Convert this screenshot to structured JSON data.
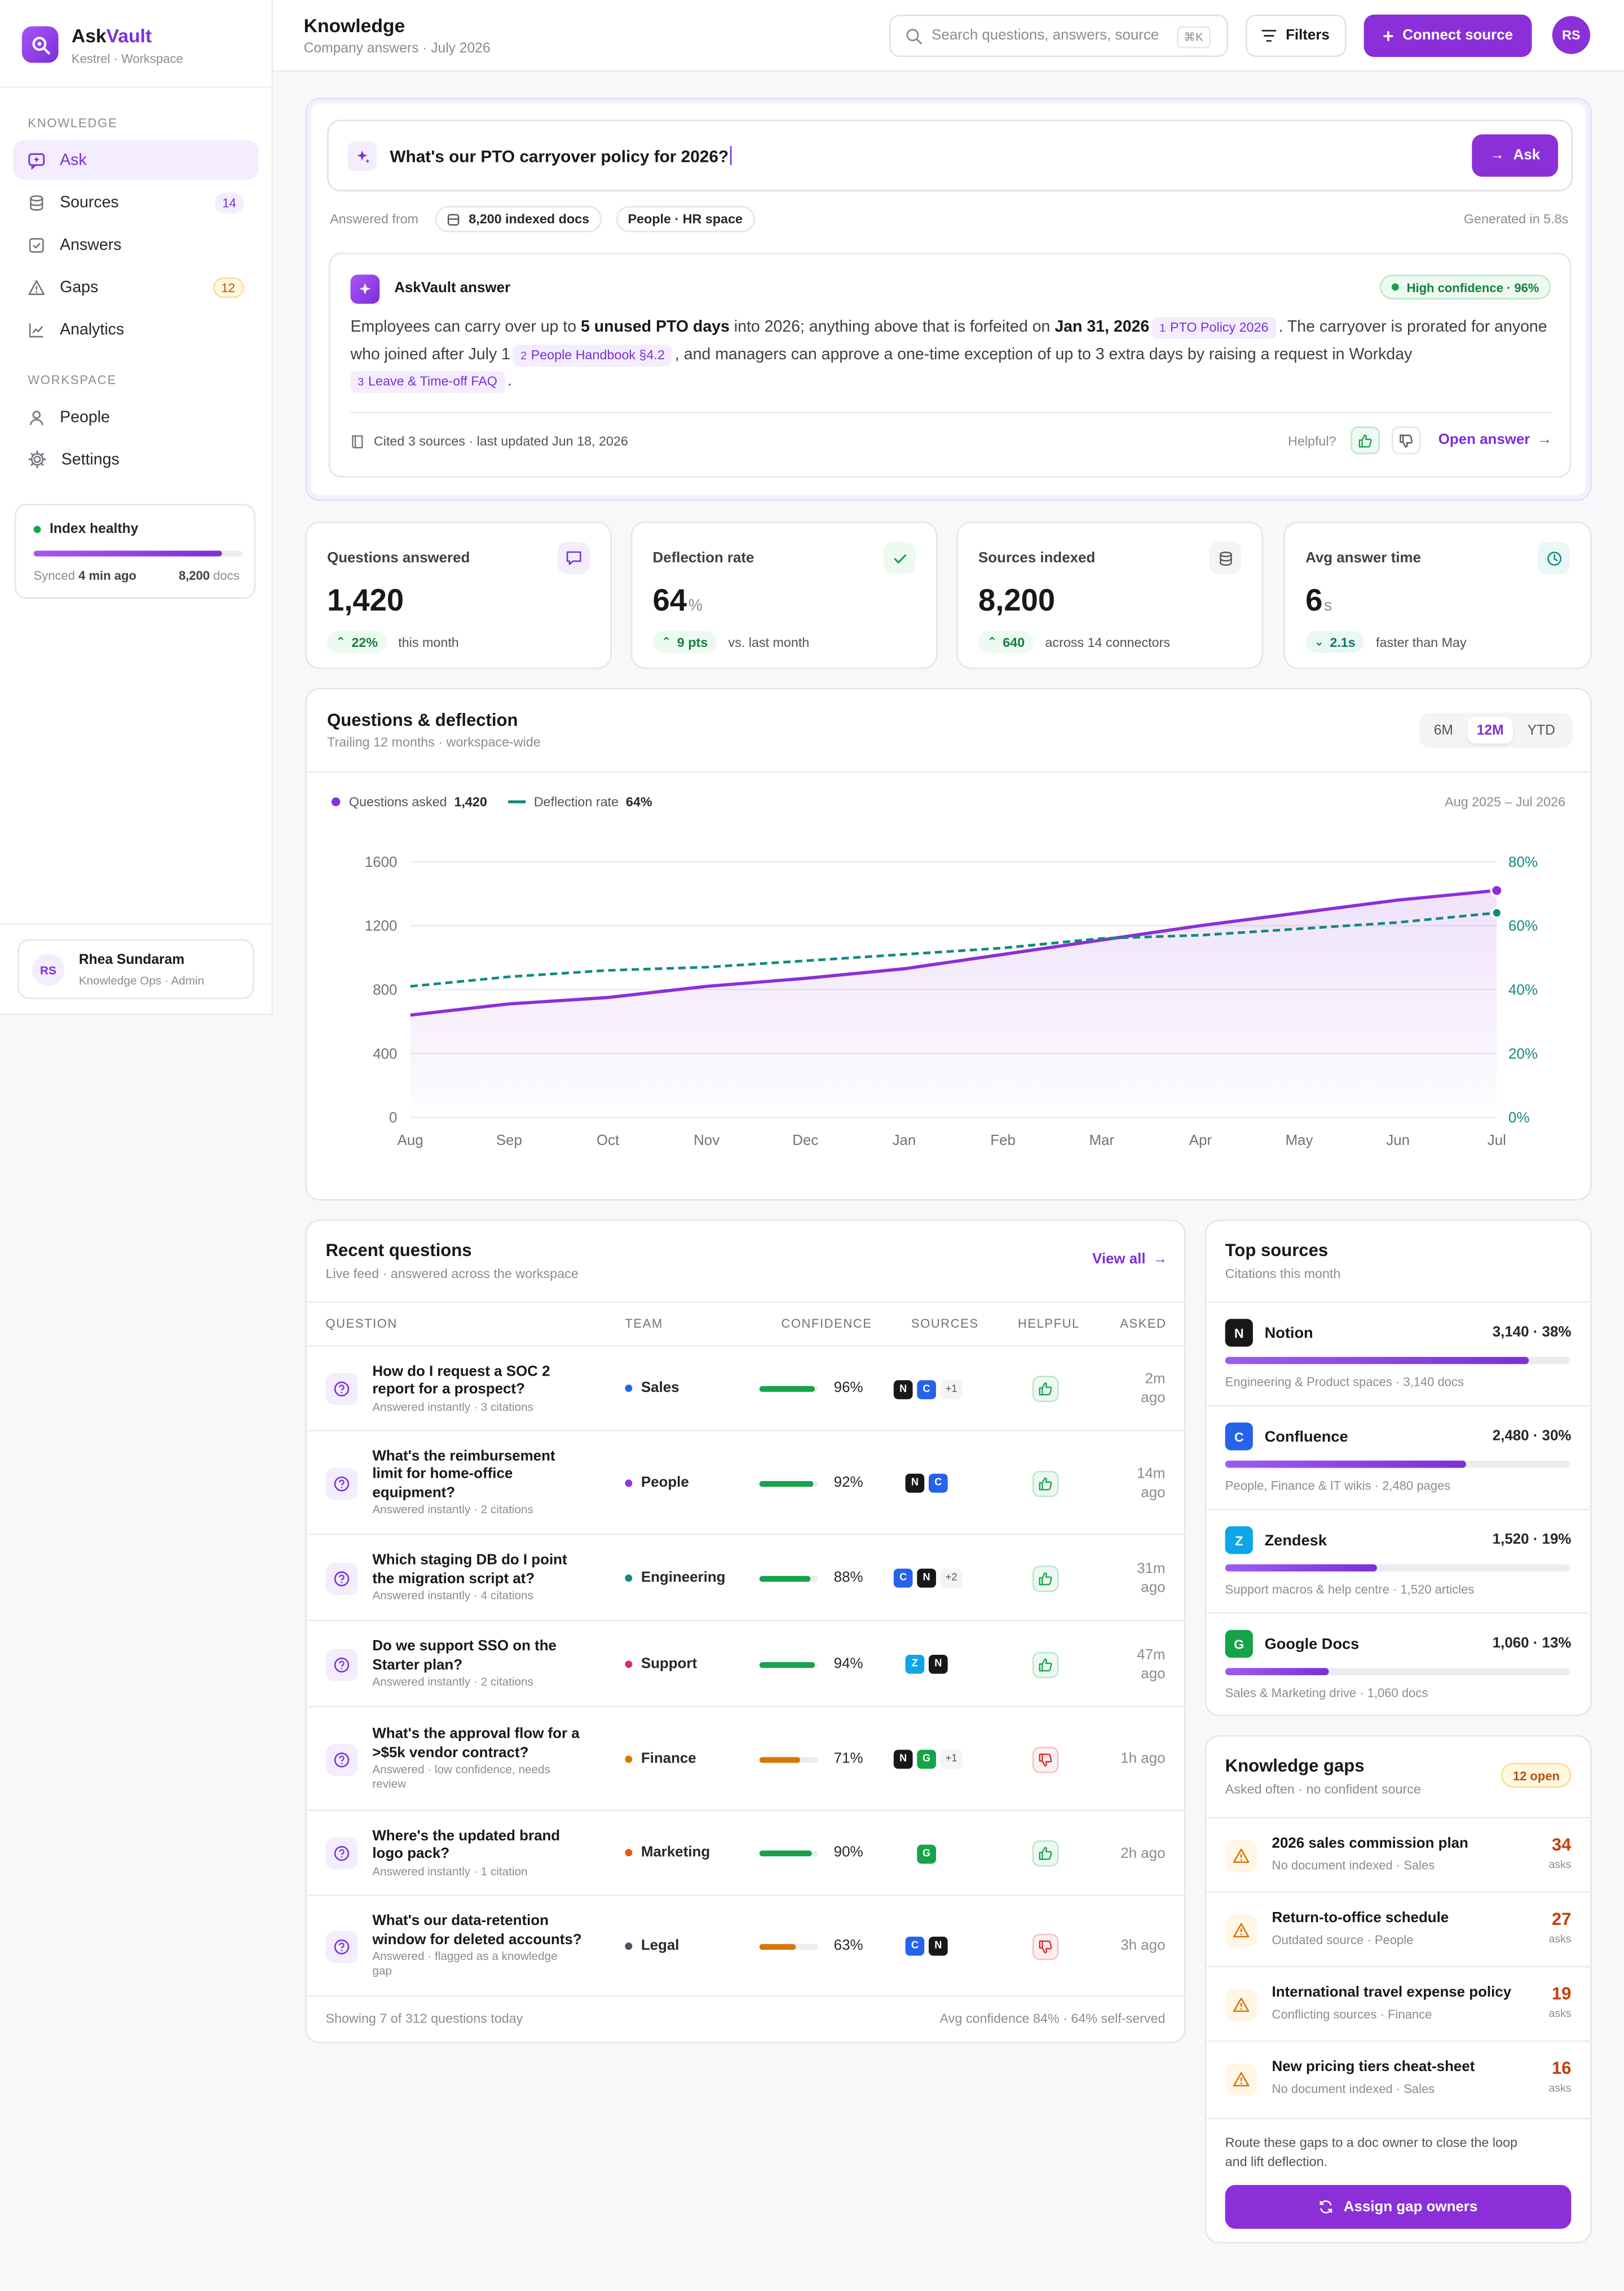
{
  "brand": {
    "name_a": "Ask",
    "name_b": "Vault",
    "workspace": "Kestrel · Workspace"
  },
  "sidebar": {
    "knowledge_label": "KNOWLEDGE",
    "workspace_label": "WORKSPACE",
    "items": [
      {
        "label": "Ask",
        "icon": "chat-icon"
      },
      {
        "label": "Sources",
        "badge": "14",
        "icon": "database-icon"
      },
      {
        "label": "Answers",
        "icon": "checkbox-icon"
      },
      {
        "label": "Gaps",
        "badge": "12",
        "icon": "warning-icon"
      },
      {
        "label": "Analytics",
        "icon": "chart-icon"
      }
    ],
    "workspace_items": [
      {
        "label": "People",
        "icon": "user-icon"
      },
      {
        "label": "Settings",
        "icon": "gear-icon"
      }
    ],
    "health": {
      "title": "Index healthy",
      "synced_pre": "Synced ",
      "synced_time": "4 min ago",
      "docs_count": "8,200",
      "docs_label": " docs",
      "progress": 0.9
    },
    "user": {
      "initials": "RS",
      "name": "Rhea Sundaram",
      "role": "Knowledge Ops · Admin"
    }
  },
  "header": {
    "title": "Knowledge",
    "subtitle": "Company answers · July 2026",
    "search_placeholder": "Search questions, answers, source",
    "shortcut": "⌘K",
    "filters": "Filters",
    "connect": "Connect source",
    "avatar": "RS"
  },
  "ask": {
    "query": "What's our PTO carryover policy for 2026?",
    "button": "Ask",
    "answered_from": "Answered from",
    "pill_docs": "8,200 indexed docs",
    "pill_space": "People · HR space",
    "generated": "Generated in 5.8s",
    "answer_title": "AskVault answer",
    "confidence": "High confidence · 96%",
    "a1": "Employees can carry over up to ",
    "a1b": "5 unused PTO days",
    "a2": " into 2026; anything above that is forfeited on ",
    "a2b": "Jan 31, 2026",
    "c1n": "1",
    "c1": "PTO Policy 2026",
    "a3": ". The carryover is prorated for anyone who joined after July 1",
    "c2n": "2",
    "c2": "People Handbook §4.2",
    "a4": ", and managers can approve a one-time exception of up to 3 extra days by raising a request in Workday",
    "c3n": "3",
    "c3": "Leave & Time-off FAQ",
    "a5": ".",
    "cited": "Cited 3 sources · last updated Jun 18, 2026",
    "helpful": "Helpful?",
    "open": "Open answer"
  },
  "stats": [
    {
      "title": "Questions answered",
      "value": "1,420",
      "unit": "",
      "delta": "22%",
      "note": "this month",
      "icon": "message-icon"
    },
    {
      "title": "Deflection rate",
      "value": "64",
      "unit": "%",
      "delta": "9 pts",
      "note": "vs. last month",
      "icon": "check-icon"
    },
    {
      "title": "Sources indexed",
      "value": "8,200",
      "unit": "",
      "delta": "640",
      "note": "across 14 connectors",
      "icon": "database-icon"
    },
    {
      "title": "Avg answer time",
      "value": "6",
      "unit": "s",
      "delta": "2.1s",
      "note": "faster than May",
      "icon": "clock-icon"
    }
  ],
  "chart_panel": {
    "title": "Questions & deflection",
    "subtitle": "Trailing 12 months · workspace-wide",
    "ranges": [
      "6M",
      "12M",
      "YTD"
    ],
    "active_range": "12M",
    "legend_q": "Questions asked",
    "legend_q_val": "1,420",
    "legend_d": "Deflection rate",
    "legend_d_val": "64%",
    "period": "Aug 2025 – Jul 2026"
  },
  "chart_data": {
    "type": "line",
    "x": [
      "Aug",
      "Sep",
      "Oct",
      "Nov",
      "Dec",
      "Jan",
      "Feb",
      "Mar",
      "Apr",
      "May",
      "Jun",
      "Jul"
    ],
    "series": [
      {
        "name": "Questions asked",
        "axis": "left",
        "values": [
          640,
          710,
          750,
          820,
          870,
          930,
          1020,
          1110,
          1200,
          1280,
          1360,
          1420
        ],
        "color": "#8b2fd9"
      },
      {
        "name": "Deflection rate",
        "axis": "right",
        "values": [
          41,
          44,
          46,
          47,
          49,
          51,
          53,
          56,
          57,
          59,
          61,
          64
        ],
        "color": "#0f8a7e"
      }
    ],
    "y_left": {
      "min": 0,
      "max": 1600,
      "ticks": [
        0,
        400,
        800,
        1200,
        1600
      ]
    },
    "y_right": {
      "min": 0,
      "max": 80,
      "ticks": [
        "0%",
        "20%",
        "40%",
        "60%",
        "80%"
      ]
    },
    "grid": true,
    "legend": "top-left"
  },
  "recent": {
    "title": "Recent questions",
    "subtitle": "Live feed · answered across the workspace",
    "view_all": "View all",
    "headers": [
      "QUESTION",
      "TEAM",
      "CONFIDENCE",
      "SOURCES",
      "HELPFUL",
      "ASKED"
    ],
    "rows": [
      {
        "q": [
          "How do I request a SOC 2",
          "report for a prospect?"
        ],
        "sub": [
          "Answered instantly · 3 citations"
        ],
        "team": "Sales",
        "dot": "#2563eb",
        "conf": 0.96,
        "conf_label": "96%",
        "sources": [
          "N",
          "C"
        ],
        "more": "+1",
        "helpful": "up",
        "asked": [
          "2m",
          "ago"
        ]
      },
      {
        "q": [
          "What's the reimbursement",
          "limit for home-office",
          "equipment?"
        ],
        "sub": [
          "Answered instantly · 2 citations"
        ],
        "team": "People",
        "dot": "#9333ea",
        "conf": 0.92,
        "conf_label": "92%",
        "sources": [
          "N",
          "C"
        ],
        "more": "",
        "helpful": "up",
        "asked": [
          "14m",
          "ago"
        ]
      },
      {
        "q": [
          "Which staging DB do I point",
          "the migration script at?"
        ],
        "sub": [
          "Answered instantly · 4 citations"
        ],
        "team": "Engineering",
        "dot": "#0f8a7e",
        "conf": 0.88,
        "conf_label": "88%",
        "sources": [
          "C",
          "N"
        ],
        "more": "+2",
        "helpful": "up",
        "asked": [
          "31m",
          "ago"
        ]
      },
      {
        "q": [
          "Do we support SSO on the",
          "Starter plan?"
        ],
        "sub": [
          "Answered instantly · 2 citations"
        ],
        "team": "Support",
        "dot": "#db2777",
        "conf": 0.94,
        "conf_label": "94%",
        "sources": [
          "Z",
          "N"
        ],
        "more": "",
        "helpful": "up",
        "asked": [
          "47m",
          "ago"
        ]
      },
      {
        "q": [
          "What's the approval flow for a",
          ">$5k vendor contract?"
        ],
        "sub": [
          "Answered · low confidence, needs",
          "review"
        ],
        "team": "Finance",
        "dot": "#d97706",
        "conf": 0.71,
        "conf_label": "71%",
        "sources": [
          "N",
          "G"
        ],
        "more": "+1",
        "helpful": "down",
        "asked": [
          "1h ago"
        ]
      },
      {
        "q": [
          "Where's the updated brand",
          "logo pack?"
        ],
        "sub": [
          "Answered instantly · 1 citation"
        ],
        "team": "Marketing",
        "dot": "#ea580c",
        "conf": 0.9,
        "conf_label": "90%",
        "sources": [
          "G"
        ],
        "more": "",
        "helpful": "up",
        "asked": [
          "2h ago"
        ]
      },
      {
        "q": [
          "What's our data-retention",
          "window for deleted accounts?"
        ],
        "sub": [
          "Answered · flagged as a knowledge",
          "gap"
        ],
        "team": "Legal",
        "dot": "#4b5563",
        "conf": 0.63,
        "conf_label": "63%",
        "sources": [
          "C",
          "N"
        ],
        "more": "",
        "helpful": "down",
        "asked": [
          "3h ago"
        ]
      }
    ],
    "footer_left": "Showing 7 of 312 questions today",
    "footer_right": "Avg confidence 84% · 64% self-served"
  },
  "top_sources": {
    "title": "Top sources",
    "subtitle": "Citations this month",
    "items": [
      {
        "logo": "N",
        "name": "Notion",
        "count": "3,140 · 38%",
        "share": 0.88,
        "sub": "Engineering & Product spaces · 3,140 docs",
        "color": "#18181b"
      },
      {
        "logo": "C",
        "name": "Confluence",
        "count": "2,480 · 30%",
        "share": 0.7,
        "sub": "People, Finance & IT wikis · 2,480 pages",
        "color": "#2563eb"
      },
      {
        "logo": "Z",
        "name": "Zendesk",
        "count": "1,520 · 19%",
        "share": 0.44,
        "sub": "Support macros & help centre · 1,520 articles",
        "color": "#0ea5e9"
      },
      {
        "logo": "G",
        "name": "Google Docs",
        "count": "1,060 · 13%",
        "share": 0.3,
        "sub": "Sales & Marketing drive · 1,060 docs",
        "color": "#16a34a"
      }
    ]
  },
  "gaps": {
    "title": "Knowledge gaps",
    "subtitle": "Asked often · no confident source",
    "badge": "12 open",
    "items": [
      {
        "title": "2026 sales commission plan",
        "sub": "No document indexed · Sales",
        "count": "34",
        "unit": "asks"
      },
      {
        "title": "Return-to-office schedule",
        "sub": "Outdated source · People",
        "count": "27",
        "unit": "asks"
      },
      {
        "title": "International travel expense policy",
        "sub": "Conflicting sources · Finance",
        "count": "19",
        "unit": "asks"
      },
      {
        "title": "New pricing tiers cheat-sheet",
        "sub": "No document indexed · Sales",
        "count": "16",
        "unit": "asks"
      }
    ],
    "note": [
      "Route these gaps to a doc owner to close the loop",
      "and lift deflection."
    ],
    "button": "Assign gap owners"
  },
  "colors": {
    "accent": "#8b2fd9",
    "accent_light": "#f3edfd",
    "teal": "#0f8a7e",
    "green": "#16a34a",
    "red": "#dc2626",
    "orange": "#c2410c"
  }
}
